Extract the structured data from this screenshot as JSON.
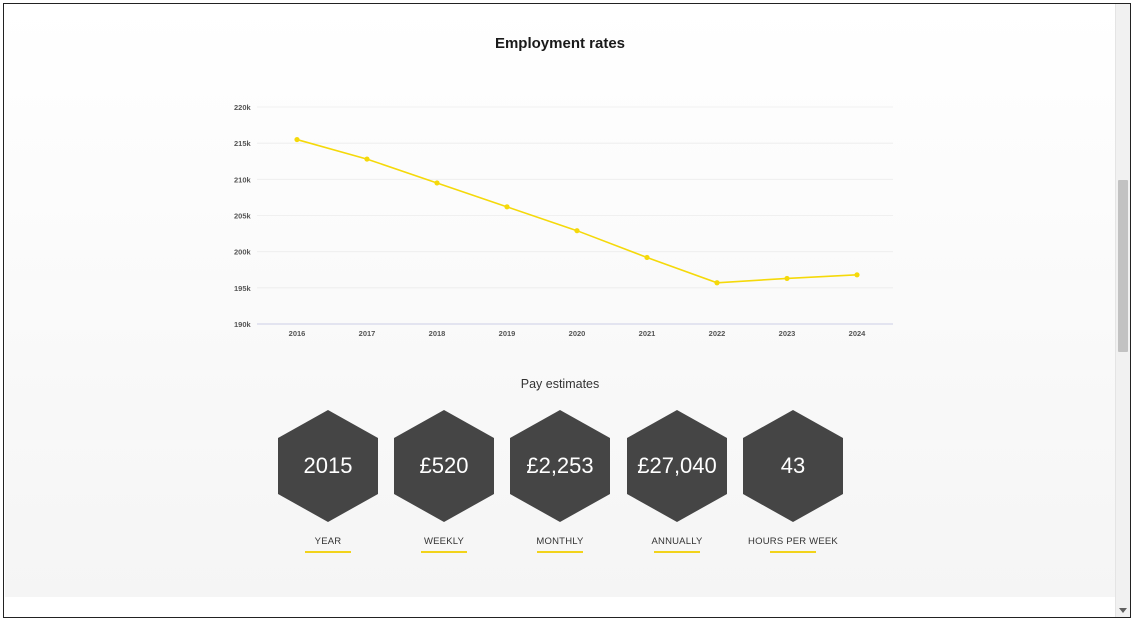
{
  "chart_data": {
    "type": "line",
    "title": "Employment rates",
    "categories": [
      "2016",
      "2017",
      "2018",
      "2019",
      "2020",
      "2021",
      "2022",
      "2023",
      "2024"
    ],
    "series": [
      {
        "values": [
          215500,
          212800,
          209500,
          206200,
          202900,
          199200,
          195700,
          196300,
          196800
        ]
      }
    ],
    "ylim": [
      190000,
      220000
    ],
    "y_ticks": [
      190000,
      195000,
      200000,
      205000,
      210000,
      215000,
      220000
    ],
    "y_tick_labels": [
      "190k",
      "195k",
      "200k",
      "205k",
      "210k",
      "215k",
      "220k"
    ],
    "grid": true,
    "line_color": "#f5d90a",
    "xlabel": "",
    "ylabel": ""
  },
  "pay": {
    "title": "Pay estimates",
    "items": [
      {
        "value": "2015",
        "label": "YEAR"
      },
      {
        "value": "£520",
        "label": "WEEKLY"
      },
      {
        "value": "£2,253",
        "label": "MONTHLY"
      },
      {
        "value": "£27,040",
        "label": "ANNUALLY"
      },
      {
        "value": "43",
        "label": "HOURS PER WEEK"
      }
    ]
  },
  "colors": {
    "hex_fill": "#454545",
    "underline": "#f2d31b",
    "line": "#f5d90a"
  }
}
